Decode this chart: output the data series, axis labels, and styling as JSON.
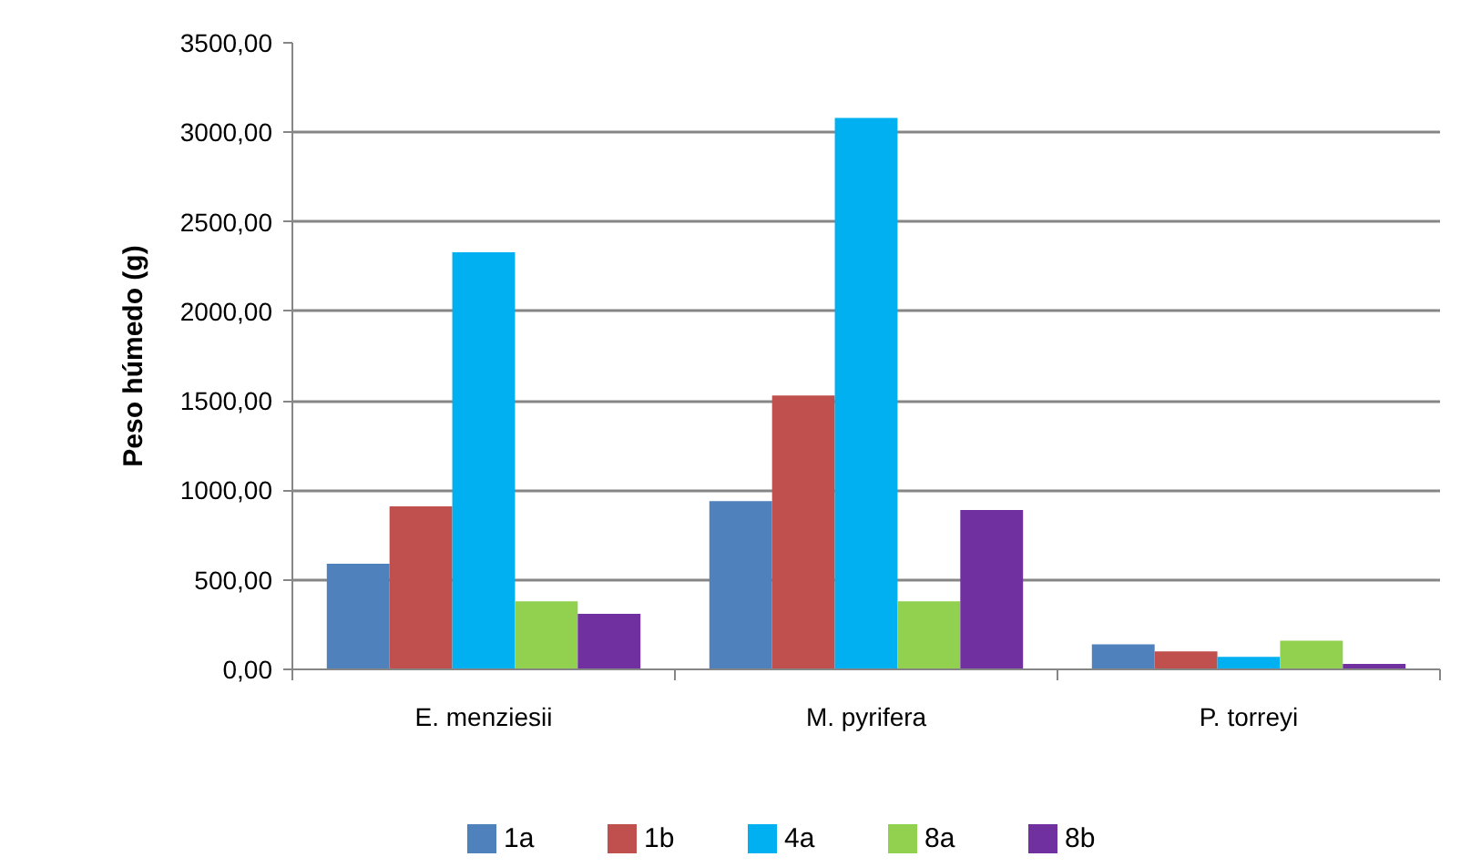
{
  "chart_data": {
    "type": "bar",
    "ylabel": "Peso húmedo (g)",
    "categories": [
      "E. menziesii",
      "M. pyrifera",
      "P. torreyi"
    ],
    "series": [
      {
        "name": "1a",
        "color": "#4f81bd",
        "values": [
          590,
          940,
          140
        ]
      },
      {
        "name": "1b",
        "color": "#c0504d",
        "values": [
          910,
          1530,
          100
        ]
      },
      {
        "name": "4a",
        "color": "#00b0f0",
        "values": [
          2330,
          3080,
          70
        ]
      },
      {
        "name": "8a",
        "color": "#92d050",
        "values": [
          380,
          380,
          160
        ]
      },
      {
        "name": "8b",
        "color": "#7030a0",
        "values": [
          310,
          890,
          30
        ]
      }
    ],
    "ylim": [
      0,
      3500
    ],
    "yticks": [
      {
        "value": 0,
        "label": "0,00"
      },
      {
        "value": 500,
        "label": "500,00"
      },
      {
        "value": 1000,
        "label": "1000,00"
      },
      {
        "value": 1500,
        "label": "1500,00"
      },
      {
        "value": 2000,
        "label": "2000,00"
      },
      {
        "value": 2500,
        "label": "2500,00"
      },
      {
        "value": 3000,
        "label": "3000,00"
      },
      {
        "value": 3500,
        "label": "3500,00"
      }
    ],
    "grid": "y",
    "legend": "bottom"
  }
}
